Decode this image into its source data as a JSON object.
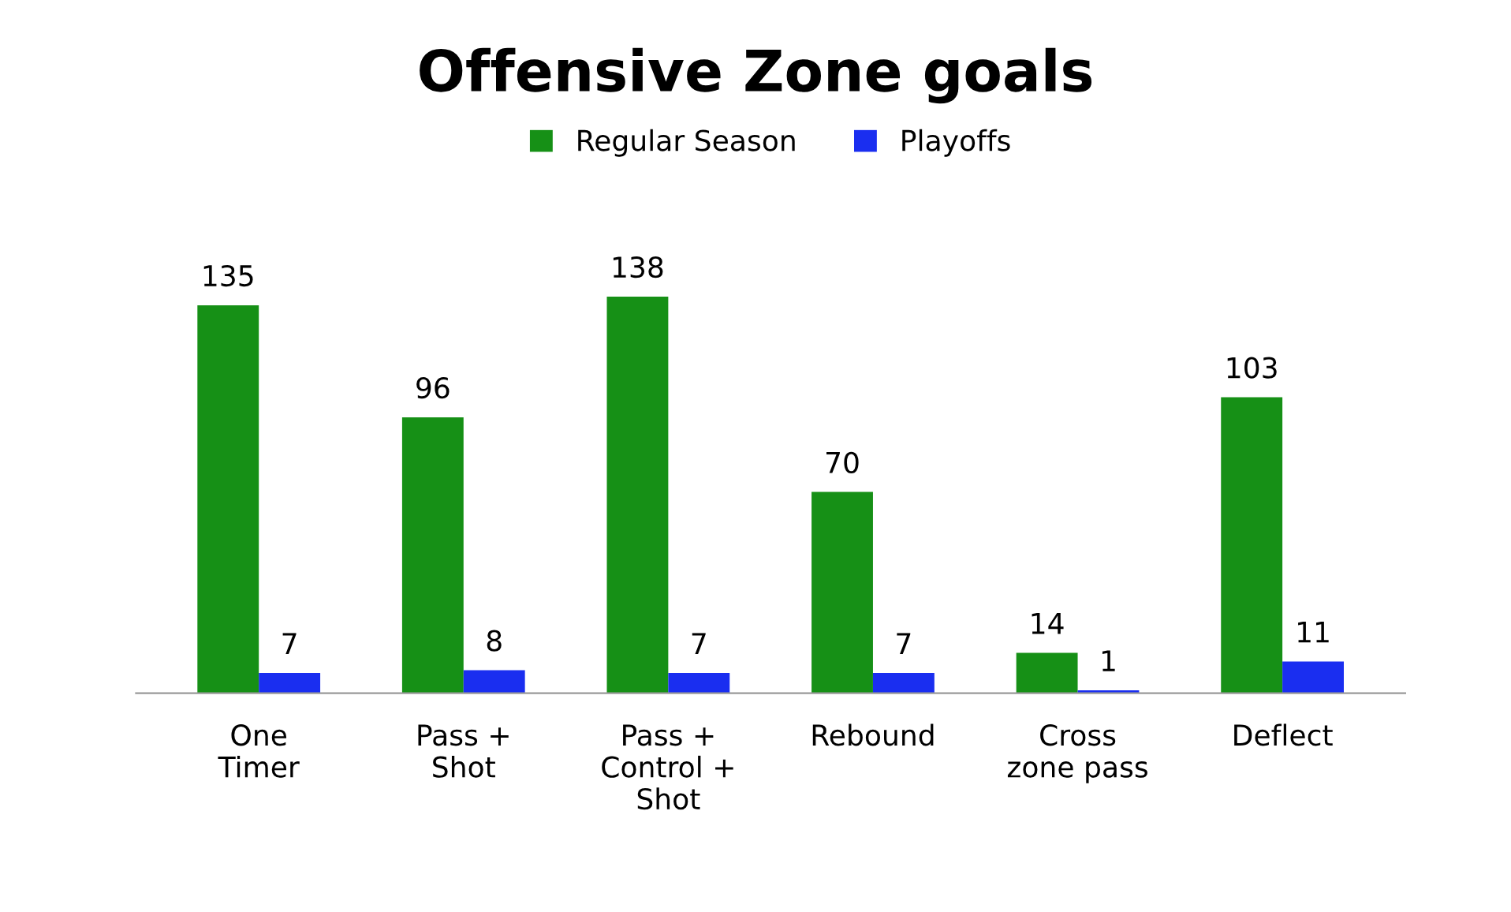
{
  "chart_data": {
    "type": "bar",
    "title": "Offensive Zone goals",
    "categories": [
      "One\nTimer",
      "Pass +\nShot",
      "Pass +\nControl +\nShot",
      "Rebound",
      "Cross\nzone pass",
      "Deflect"
    ],
    "series": [
      {
        "name": "Regular Season",
        "color": "#169016",
        "values": [
          135,
          96,
          138,
          70,
          14,
          103
        ]
      },
      {
        "name": "Playoffs",
        "color": "#1a2ef0",
        "values": [
          7,
          8,
          7,
          7,
          1,
          11
        ]
      }
    ],
    "data_labels": true,
    "legend": "top",
    "grid": false
  }
}
